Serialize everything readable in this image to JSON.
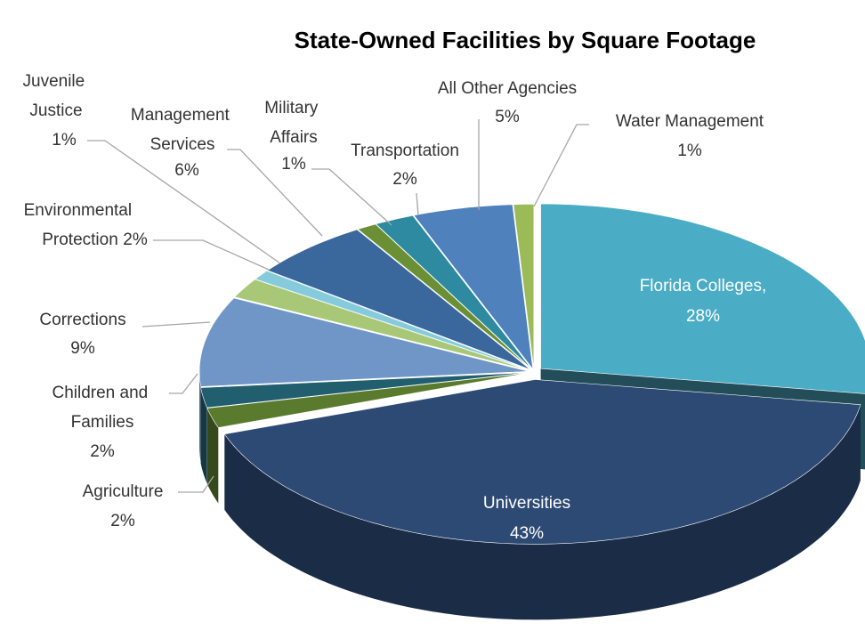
{
  "chart_data": {
    "type": "pie3d",
    "title": "State-Owned Facilities by Square Footage",
    "categories": [
      "Florida Colleges,",
      "Universities",
      "Agriculture",
      "Children and Families",
      "Corrections",
      "Environmental Protection",
      "Juvenile Justice",
      "Management Services",
      "Military Affairs",
      "Transportation",
      "All Other Agencies",
      "Water Management"
    ],
    "values": [
      28,
      43,
      2,
      2,
      9,
      2,
      1,
      6,
      1,
      2,
      5,
      1
    ],
    "value_labels": [
      "28%",
      "43%",
      "2%",
      "2%",
      "9%",
      "2%",
      "1%",
      "6%",
      "1%",
      "2%",
      "5%",
      "1%"
    ],
    "colors": [
      "#4bacc6",
      "#2c4a74",
      "#5a7a2e",
      "#215f6e",
      "#7096c8",
      "#a8c878",
      "#86cbdb",
      "#3a679c",
      "#6b8f34",
      "#2e8aa0",
      "#4f81bd",
      "#9bbb59"
    ]
  }
}
